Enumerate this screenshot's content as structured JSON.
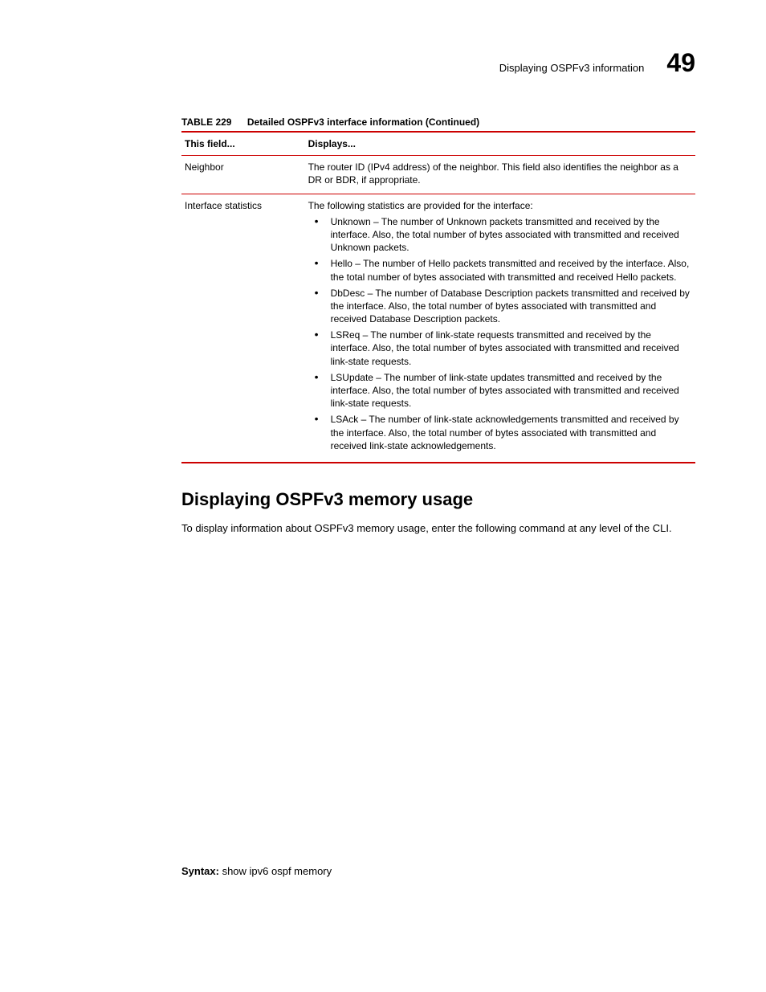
{
  "header": {
    "running_title": "Displaying OSPFv3 information",
    "chapter_number": "49"
  },
  "table": {
    "caption_label": "TABLE 229",
    "caption_title": "Detailed OSPFv3 interface information  (Continued)",
    "head_field": "This field...",
    "head_displays": "Displays...",
    "rows": [
      {
        "field": "Neighbor",
        "intro": "The router ID (IPv4 address) of the neighbor. This field also identifies the neighbor as a DR or BDR, if appropriate.",
        "bullets": []
      },
      {
        "field": "Interface statistics",
        "intro": "The following statistics are provided for the interface:",
        "bullets": [
          "Unknown – The number of Unknown packets transmitted and received by the interface. Also, the total number of bytes associated with transmitted and received Unknown packets.",
          "Hello – The number of Hello packets transmitted and received by the interface. Also, the total number of bytes associated with transmitted and received Hello packets.",
          "DbDesc – The number of Database Description packets transmitted and received by the interface. Also, the total number of bytes associated with transmitted and received Database Description packets.",
          "LSReq – The number of link-state requests transmitted and received by the interface. Also, the total number of bytes associated with transmitted and received link-state requests.",
          "LSUpdate – The number of link-state updates transmitted and received by the interface. Also, the total number of bytes associated with transmitted and received link-state requests.",
          "LSAck – The number of link-state acknowledgements transmitted and received by the interface. Also, the total number of bytes associated with transmitted and received link-state acknowledgements."
        ]
      }
    ]
  },
  "section": {
    "heading": "Displaying OSPFv3 memory usage",
    "paragraph": "To display information about OSPFv3 memory usage, enter the following command at any level of the CLI."
  },
  "syntax": {
    "label": "Syntax:",
    "command": " show ipv6 ospf memory"
  }
}
